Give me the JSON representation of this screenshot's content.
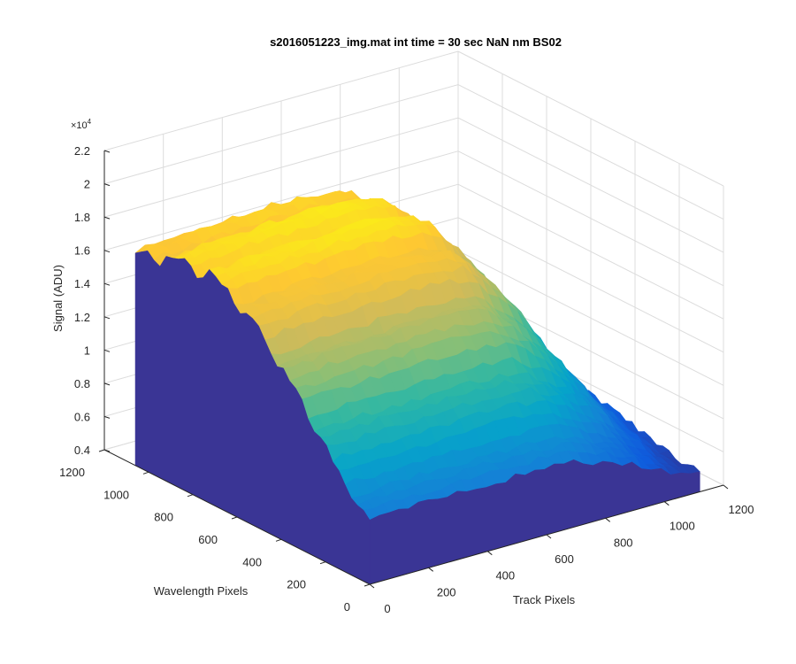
{
  "chart_data": {
    "type": "surface",
    "title": "s2016051223_img.mat int time = 30 sec  NaN nm BS02",
    "xlabel": "Track Pixels",
    "ylabel": "Wavelength Pixels",
    "zlabel": "Signal (ADU)",
    "z_exponent_label": "×10",
    "z_exponent_power": "4",
    "xlim": [
      0,
      1200
    ],
    "ylim": [
      0,
      1200
    ],
    "zlim": [
      0.4,
      2.2
    ],
    "z_scale": 10000,
    "x_ticks": [
      "0",
      "200",
      "400",
      "600",
      "800",
      "1000",
      "1200"
    ],
    "y_ticks": [
      "0",
      "200",
      "400",
      "600",
      "800",
      "1000",
      "1200"
    ],
    "z_ticks": [
      "0.4",
      "0.6",
      "0.8",
      "1",
      "1.2",
      "1.4",
      "1.6",
      "1.8",
      "2",
      "2.2"
    ],
    "grid": true,
    "colormap": "parula",
    "colors": [
      "#352a87",
      "#0f5cdd",
      "#1481d6",
      "#06a4ca",
      "#2eb7a4",
      "#87bf77",
      "#d1bb59",
      "#fec832",
      "#f9fb0e"
    ],
    "surface_profile": {
      "description_units": "signal in units of 10^4 ADU",
      "track_pixel": [
        0,
        100,
        200,
        300,
        400,
        500,
        600,
        700,
        800,
        900,
        1000,
        1100
      ],
      "peak_signal": [
        1.8,
        1.81,
        1.83,
        1.83,
        1.84,
        1.85,
        1.84,
        1.8,
        1.6,
        1.35,
        1.0,
        0.7
      ],
      "wavelength_pixel": [
        0,
        100,
        200,
        300,
        400,
        500,
        600,
        700,
        800,
        900,
        1000,
        1100
      ],
      "relative_signal": [
        0.25,
        0.35,
        0.48,
        0.62,
        0.75,
        0.86,
        0.94,
        0.99,
        1.0,
        0.98,
        0.95,
        0.9
      ]
    }
  }
}
